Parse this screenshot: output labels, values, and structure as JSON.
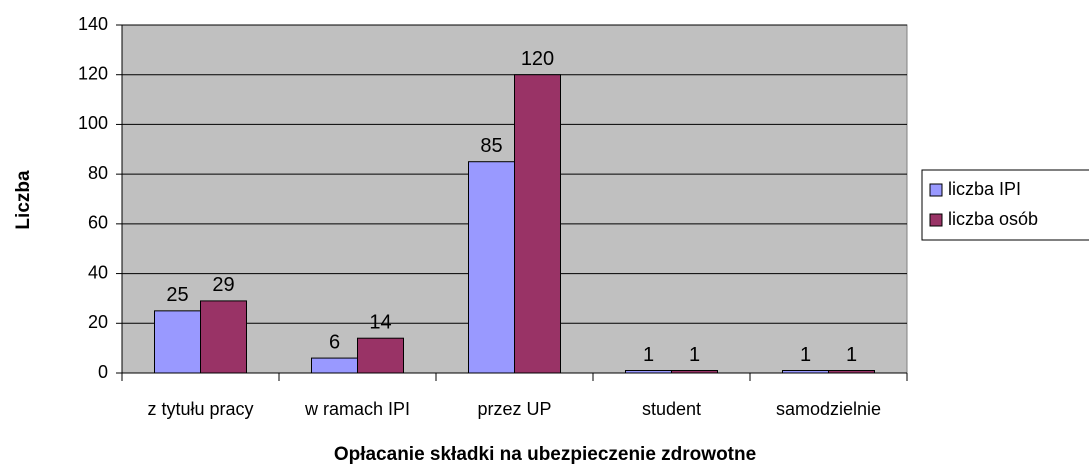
{
  "chart_data": {
    "type": "bar",
    "x_label": "Opłacanie składki na ubezpieczenie zdrowotne",
    "y_label": "Liczba",
    "categories": [
      "z tytułu pracy",
      "w ramach IPI",
      "przez UP",
      "student",
      "samodzielnie"
    ],
    "series": [
      {
        "name": "liczba IPI",
        "color": "#9999ff",
        "values": [
          25,
          6,
          85,
          1,
          1
        ]
      },
      {
        "name": "liczba osób",
        "color": "#993366",
        "values": [
          29,
          14,
          120,
          1,
          1
        ]
      }
    ],
    "ylim": [
      0,
      140
    ],
    "yticks": [
      0,
      20,
      40,
      60,
      80,
      100,
      120,
      140
    ],
    "grid": true,
    "plot_background": "#c0c0c0",
    "legend": "right"
  }
}
